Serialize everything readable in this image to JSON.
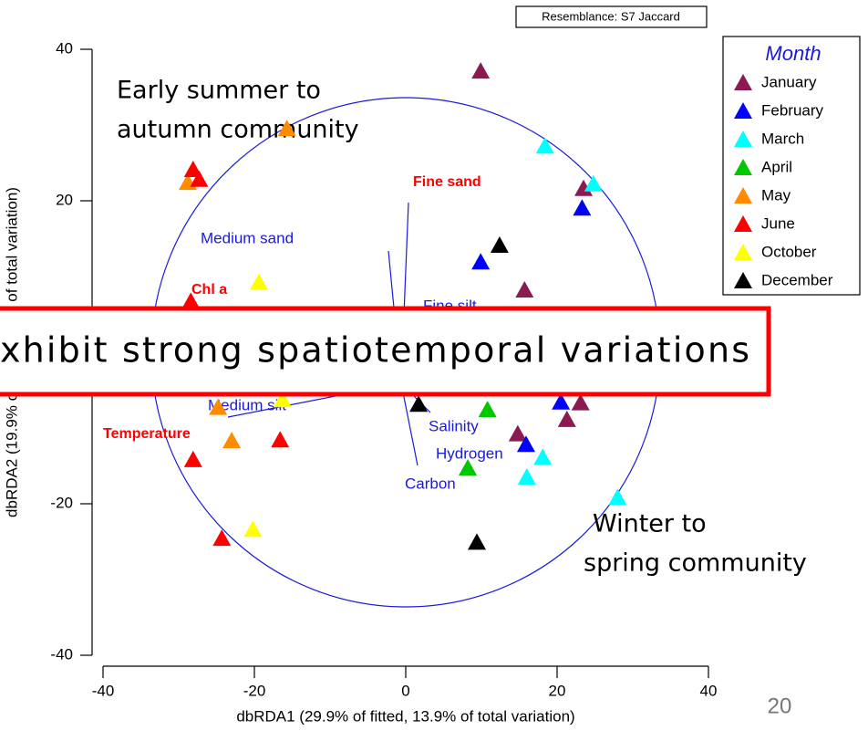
{
  "chart_data": {
    "type": "scatter",
    "resemblance": "Resemblance: S7 Jaccard",
    "xlabel": "dbRDA1 (29.9% of fitted, 13.9% of total variation)",
    "ylabel": "dbRDA2 (19.9% of fitted, 9.3% of total variation)",
    "xlim": [
      -40,
      40
    ],
    "ylim": [
      -40,
      40
    ],
    "xticks": [
      -40,
      -20,
      0,
      20,
      40
    ],
    "yticks": [
      -40,
      -20,
      0,
      20,
      40
    ],
    "legend_title": "Month",
    "legend_position": "right",
    "annotations": [
      "Early summer to",
      "autumn community",
      "Winter to",
      "spring community"
    ],
    "vector_labels": [
      "Fine sand",
      "Medium sand",
      "Chl a",
      "Fine silt",
      "Medium silt",
      "Temperature",
      "Salinity",
      "Hydrogen",
      "Carbon"
    ],
    "series": [
      {
        "name": "January",
        "color": "#8b1a50",
        "x": [
          9.9,
          23.5,
          15.7,
          23.1,
          21.3,
          14.8
        ],
        "y": [
          37.1,
          21.6,
          8.2,
          -6.7,
          -8.9,
          -10.8
        ]
      },
      {
        "name": "February",
        "color": "#0000ff",
        "x": [
          23.3,
          9.9,
          20.5,
          15.9
        ],
        "y": [
          19.0,
          11.9,
          -6.6,
          -12.2
        ]
      },
      {
        "name": "March",
        "color": "#00ffff",
        "x": [
          18.4,
          24.8,
          18.1,
          16.0,
          28.0
        ],
        "y": [
          27.2,
          22.2,
          -13.9,
          -16.5,
          -19.2
        ]
      },
      {
        "name": "April",
        "color": "#00c800",
        "x": [
          10.8,
          8.2
        ],
        "y": [
          -7.6,
          -15.3
        ]
      },
      {
        "name": "May",
        "color": "#ff8c00",
        "x": [
          -15.7,
          -28.8,
          -24.8,
          -23.0
        ],
        "y": [
          29.5,
          22.4,
          -7.3,
          -11.7
        ]
      },
      {
        "name": "June",
        "color": "#ff0000",
        "x": [
          -28.1,
          -27.3,
          -28.4,
          -16.6,
          -28.1,
          -24.3
        ],
        "y": [
          24.1,
          22.8,
          6.7,
          -11.6,
          -14.2,
          -24.6
        ]
      },
      {
        "name": "October",
        "color": "#ffff00",
        "x": [
          -19.4,
          -16.3,
          -10.6,
          -20.2
        ],
        "y": [
          9.2,
          -6.3,
          -4.7,
          -23.4
        ]
      },
      {
        "name": "December",
        "color": "#000000",
        "x": [
          12.4,
          1.7,
          9.4
        ],
        "y": [
          14.1,
          -6.9,
          -25.1
        ]
      }
    ]
  },
  "banner": "xhibit strong spatiotemporal variations",
  "slide_number": "20"
}
